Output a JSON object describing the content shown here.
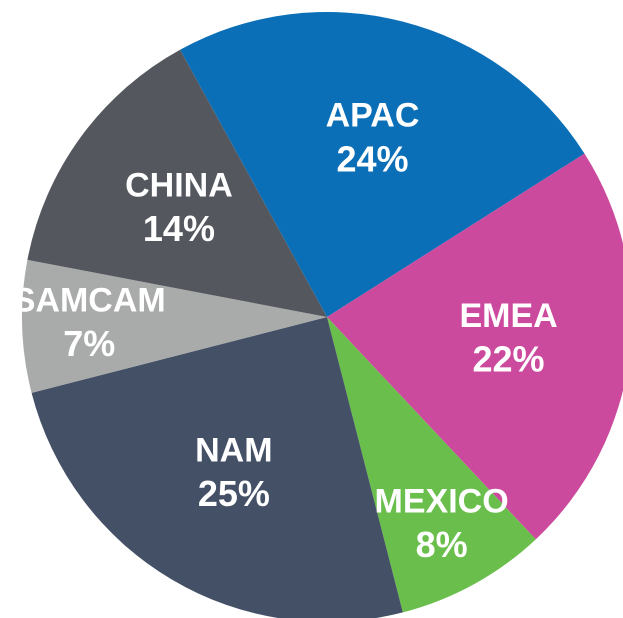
{
  "chart_data": {
    "type": "pie",
    "categories": [
      "APAC",
      "EMEA",
      "MEXICO",
      "NAM",
      "SAMCAM",
      "CHINA"
    ],
    "values": [
      24,
      22,
      8,
      25,
      7,
      14
    ],
    "value_labels": [
      "24%",
      "22%",
      "8%",
      "25%",
      "7%",
      "14%"
    ],
    "colors": [
      "#0b6fb7",
      "#cc4a9d",
      "#6abe4c",
      "#435066",
      "#a9abaa",
      "#54585e"
    ]
  }
}
